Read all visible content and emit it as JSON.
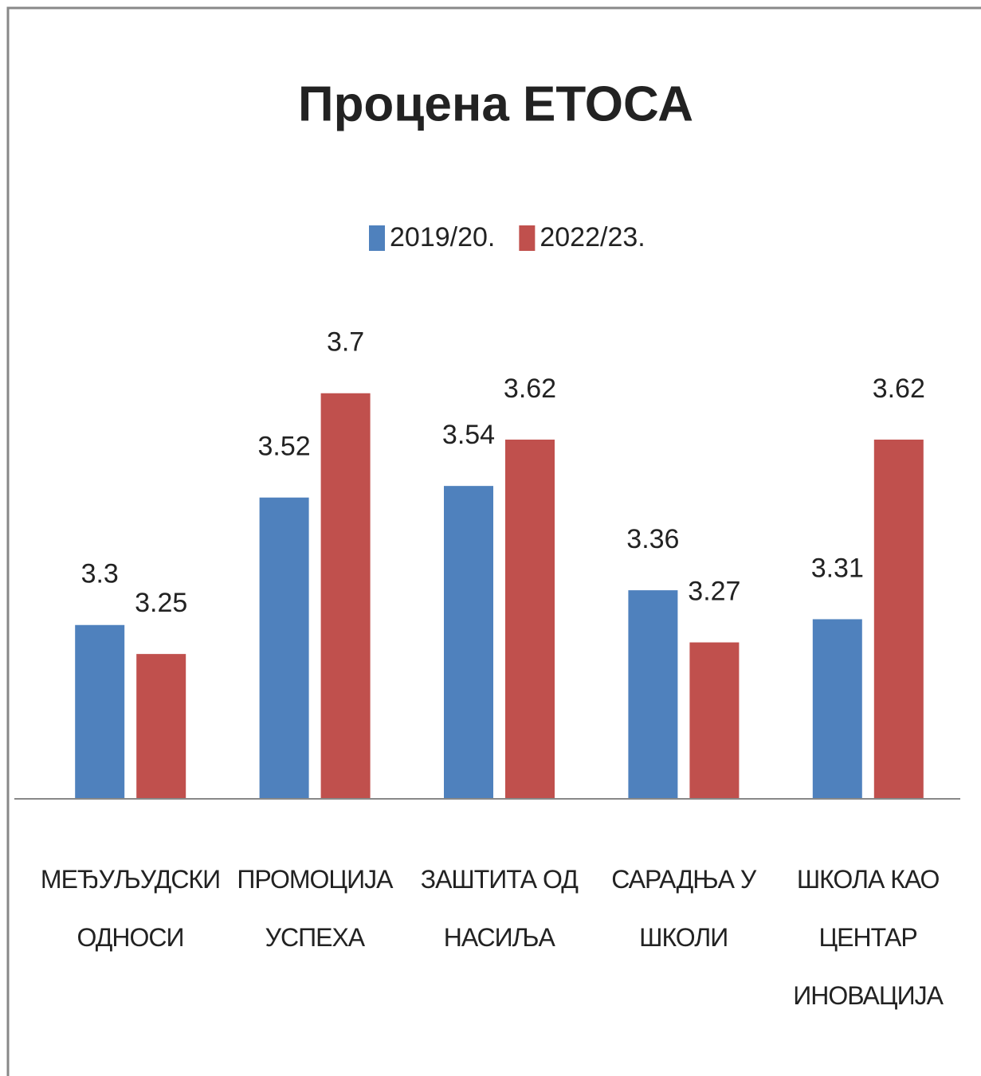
{
  "chart_data": {
    "type": "bar",
    "title": "Процена ЕТОСА",
    "categories": [
      "МЕЂУЉУДСКИ\nОДНОСИ",
      "ПРОМОЦИЈА\nУСПЕХА",
      "ЗАШТИТА ОД\nНАСИЉА",
      "САРАДЊА У\nШКОЛИ",
      "ШКОЛА КАО\nЦЕНТАР\nИНОВАЦИЈА"
    ],
    "series": [
      {
        "name": "2019/20.",
        "color": "#4f81bd",
        "values": [
          3.3,
          3.52,
          3.54,
          3.36,
          3.31
        ]
      },
      {
        "name": "2022/23.",
        "color": "#c0504d",
        "values": [
          3.25,
          3.7,
          3.62,
          3.27,
          3.62
        ]
      }
    ],
    "ylim": [
      3,
      3.8
    ],
    "legend": "top"
  }
}
